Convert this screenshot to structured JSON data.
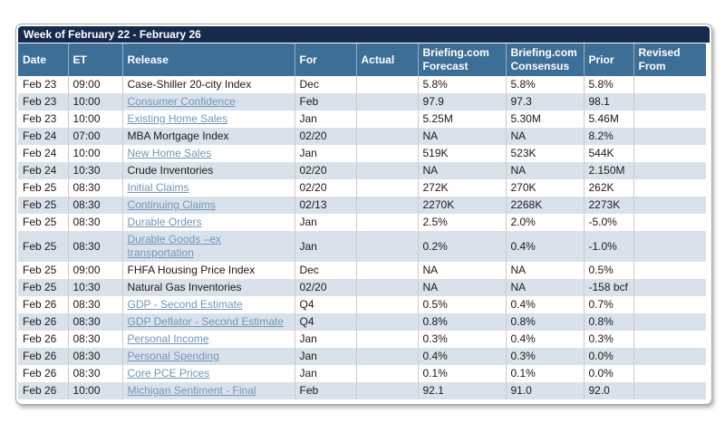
{
  "calendar": {
    "title": "Week of February 22 - February 26",
    "columns": [
      "Date",
      "ET",
      "Release",
      "For",
      "Actual",
      "Briefing.com Forecast",
      "Briefing.com Consensus",
      "Prior",
      "Revised From"
    ],
    "colors": {
      "title_bar": "#18294e",
      "header": "#3d6e96",
      "alt_row": "#d9e2eb",
      "link": "#7496b8",
      "divider": "#cccccc"
    },
    "rows": [
      {
        "date": "Feb 23",
        "et": "09:00",
        "release": "Case-Shiller 20-city Index",
        "link": false,
        "for": "Dec",
        "actual": "",
        "forecast": "5.8%",
        "consensus": "5.8%",
        "prior": "5.8%",
        "revised_from": ""
      },
      {
        "date": "Feb 23",
        "et": "10:00",
        "release": "Consumer Confidence",
        "link": true,
        "for": "Feb",
        "actual": "",
        "forecast": "97.9",
        "consensus": "97.3",
        "prior": "98.1",
        "revised_from": ""
      },
      {
        "date": "Feb 23",
        "et": "10:00",
        "release": "Existing Home Sales",
        "link": true,
        "for": "Jan",
        "actual": "",
        "forecast": "5.25M",
        "consensus": "5.30M",
        "prior": "5.46M",
        "revised_from": ""
      },
      {
        "date": "Feb 24",
        "et": "07:00",
        "release": "MBA Mortgage Index",
        "link": false,
        "for": "02/20",
        "actual": "",
        "forecast": "NA",
        "consensus": "NA",
        "prior": "8.2%",
        "revised_from": ""
      },
      {
        "date": "Feb 24",
        "et": "10:00",
        "release": "New Home Sales",
        "link": true,
        "for": "Jan",
        "actual": "",
        "forecast": "519K",
        "consensus": "523K",
        "prior": "544K",
        "revised_from": ""
      },
      {
        "date": "Feb 24",
        "et": "10:30",
        "release": "Crude Inventories",
        "link": false,
        "for": "02/20",
        "actual": "",
        "forecast": "NA",
        "consensus": "NA",
        "prior": "2.150M",
        "revised_from": ""
      },
      {
        "date": "Feb 25",
        "et": "08:30",
        "release": "Initial Claims",
        "link": true,
        "for": "02/20",
        "actual": "",
        "forecast": "272K",
        "consensus": "270K",
        "prior": "262K",
        "revised_from": ""
      },
      {
        "date": "Feb 25",
        "et": "08:30",
        "release": "Continuing Claims",
        "link": true,
        "for": "02/13",
        "actual": "",
        "forecast": "2270K",
        "consensus": "2268K",
        "prior": "2273K",
        "revised_from": ""
      },
      {
        "date": "Feb 25",
        "et": "08:30",
        "release": "Durable Orders",
        "link": true,
        "for": "Jan",
        "actual": "",
        "forecast": "2.5%",
        "consensus": "2.0%",
        "prior": "-5.0%",
        "revised_from": ""
      },
      {
        "date": "Feb 25",
        "et": "08:30",
        "release": "Durable Goods –ex transportation",
        "link": true,
        "for": "Jan",
        "actual": "",
        "forecast": "0.2%",
        "consensus": "0.4%",
        "prior": "-1.0%",
        "revised_from": ""
      },
      {
        "date": "Feb 25",
        "et": "09:00",
        "release": "FHFA Housing Price Index",
        "link": false,
        "for": "Dec",
        "actual": "",
        "forecast": "NA",
        "consensus": "NA",
        "prior": "0.5%",
        "revised_from": ""
      },
      {
        "date": "Feb 25",
        "et": "10:30",
        "release": "Natural Gas Inventories",
        "link": false,
        "for": "02/20",
        "actual": "",
        "forecast": "NA",
        "consensus": "NA",
        "prior": "-158 bcf",
        "revised_from": ""
      },
      {
        "date": "Feb 26",
        "et": "08:30",
        "release": "GDP - Second Estimate",
        "link": true,
        "for": "Q4",
        "actual": "",
        "forecast": "0.5%",
        "consensus": "0.4%",
        "prior": "0.7%",
        "revised_from": ""
      },
      {
        "date": "Feb 26",
        "et": "08:30",
        "release": "GDP Deflator - Second Estimate",
        "link": true,
        "for": "Q4",
        "actual": "",
        "forecast": "0.8%",
        "consensus": "0.8%",
        "prior": "0.8%",
        "revised_from": ""
      },
      {
        "date": "Feb 26",
        "et": "08:30",
        "release": "Personal Income",
        "link": true,
        "for": "Jan",
        "actual": "",
        "forecast": "0.3%",
        "consensus": "0.4%",
        "prior": "0.3%",
        "revised_from": ""
      },
      {
        "date": "Feb 26",
        "et": "08:30",
        "release": "Personal Spending",
        "link": true,
        "for": "Jan",
        "actual": "",
        "forecast": "0.4%",
        "consensus": "0.3%",
        "prior": "0.0%",
        "revised_from": ""
      },
      {
        "date": "Feb 26",
        "et": "08:30",
        "release": "Core PCE Prices",
        "link": true,
        "for": "Jan",
        "actual": "",
        "forecast": "0.1%",
        "consensus": "0.1%",
        "prior": "0.0%",
        "revised_from": ""
      },
      {
        "date": "Feb 26",
        "et": "10:00",
        "release": "Michigan Sentiment - Final",
        "link": true,
        "for": "Feb",
        "actual": "",
        "forecast": "92.1",
        "consensus": "91.0",
        "prior": "92.0",
        "revised_from": ""
      }
    ]
  }
}
